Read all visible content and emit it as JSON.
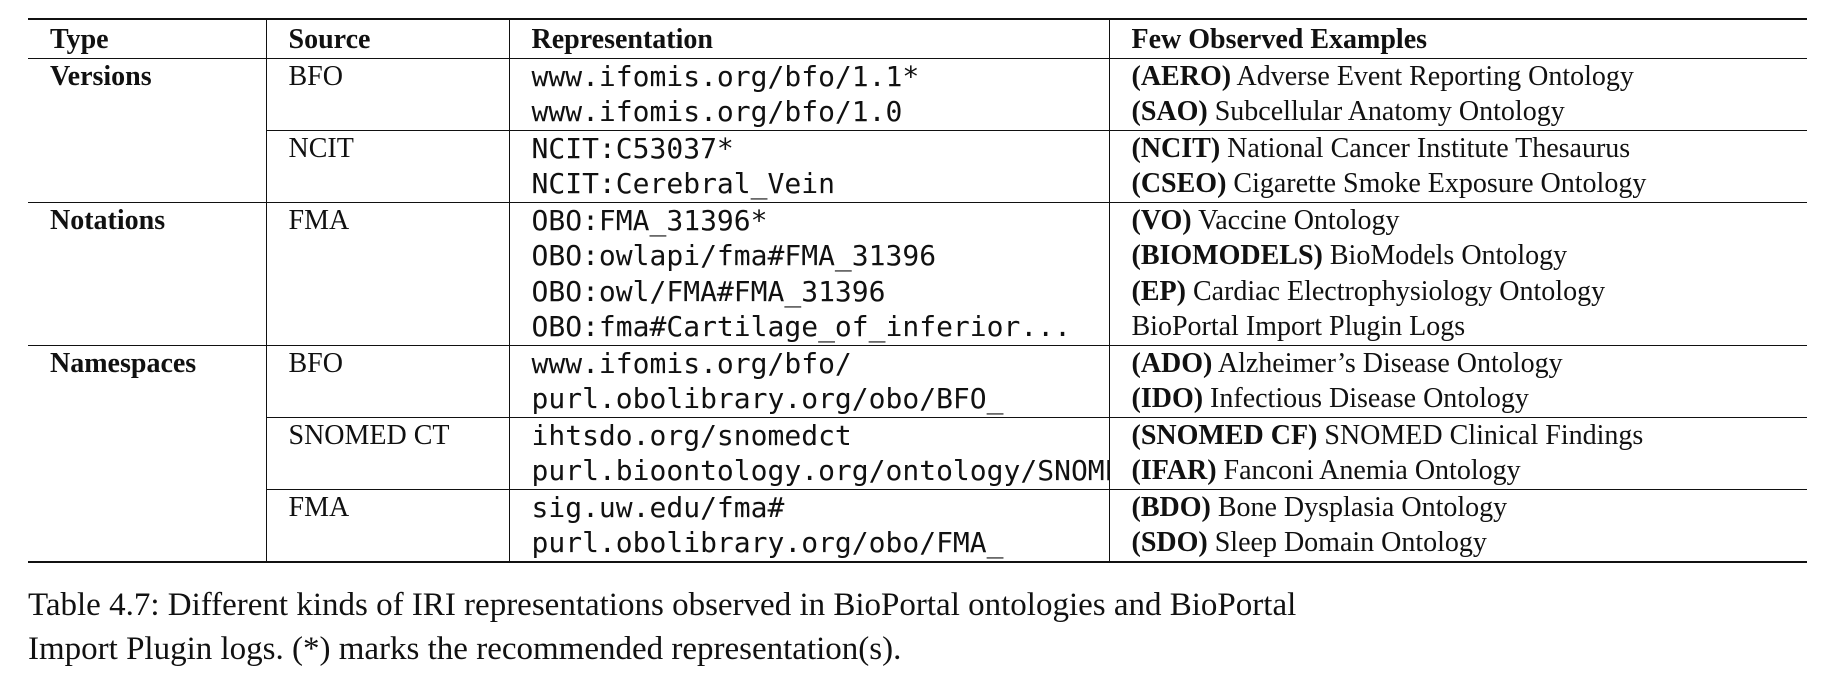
{
  "table": {
    "headers": {
      "type": "Type",
      "source": "Source",
      "representation": "Representation",
      "examples": "Few Observed Examples"
    },
    "groups": [
      {
        "type": "Versions",
        "sources": [
          {
            "source": "BFO",
            "representations": [
              "www.ifomis.org/bfo/1.1*",
              "www.ifomis.org/bfo/1.0"
            ],
            "examples": [
              {
                "abbr": "(AERO)",
                "name": "Adverse Event Reporting Ontology"
              },
              {
                "abbr": "(SAO)",
                "name": "Subcellular Anatomy Ontology"
              }
            ]
          },
          {
            "source": "NCIT",
            "representations": [
              "NCIT:C53037*",
              "NCIT:Cerebral_Vein"
            ],
            "examples": [
              {
                "abbr": "(NCIT)",
                "name": "National Cancer Institute Thesaurus"
              },
              {
                "abbr": "(CSEO)",
                "name": "Cigarette Smoke Exposure Ontology"
              }
            ]
          }
        ]
      },
      {
        "type": "Notations",
        "sources": [
          {
            "source": "FMA",
            "representations": [
              "OBO:FMA_31396*",
              "OBO:owlapi/fma#FMA_31396",
              "OBO:owl/FMA#FMA_31396",
              "OBO:fma#Cartilage_of_inferior..."
            ],
            "examples": [
              {
                "abbr": "(VO)",
                "name": "Vaccine Ontology"
              },
              {
                "abbr": "(BIOMODELS)",
                "name": "BioModels Ontology"
              },
              {
                "abbr": "(EP)",
                "name": "Cardiac Electrophysiology Ontology"
              },
              {
                "abbr": "",
                "name": "BioPortal Import Plugin Logs"
              }
            ]
          }
        ]
      },
      {
        "type": "Namespaces",
        "sources": [
          {
            "source": "BFO",
            "representations": [
              "www.ifomis.org/bfo/",
              "purl.obolibrary.org/obo/BFO_"
            ],
            "examples": [
              {
                "abbr": "(ADO)",
                "name": "Alzheimer’s Disease Ontology"
              },
              {
                "abbr": "(IDO)",
                "name": "Infectious Disease Ontology"
              }
            ]
          },
          {
            "source": "SNOMED CT",
            "representations": [
              "ihtsdo.org/snomedct",
              "purl.bioontology.org/ontology/SNOMEDCT"
            ],
            "examples": [
              {
                "abbr": "(SNOMED CF)",
                "name": "SNOMED Clinical Findings"
              },
              {
                "abbr": "(IFAR)",
                "name": "Fanconi Anemia Ontology"
              }
            ]
          },
          {
            "source": "FMA",
            "representations": [
              "sig.uw.edu/fma#",
              "purl.obolibrary.org/obo/FMA_"
            ],
            "examples": [
              {
                "abbr": "(BDO)",
                "name": "Bone Dysplasia Ontology"
              },
              {
                "abbr": "(SDO)",
                "name": "Sleep Domain Ontology"
              }
            ]
          }
        ]
      }
    ]
  },
  "caption": {
    "line1": "Table 4.7: Different kinds of IRI representations observed in BioPortal ontologies and BioPortal",
    "line2": "Import Plugin logs. (*) marks the recommended representation(s)."
  }
}
